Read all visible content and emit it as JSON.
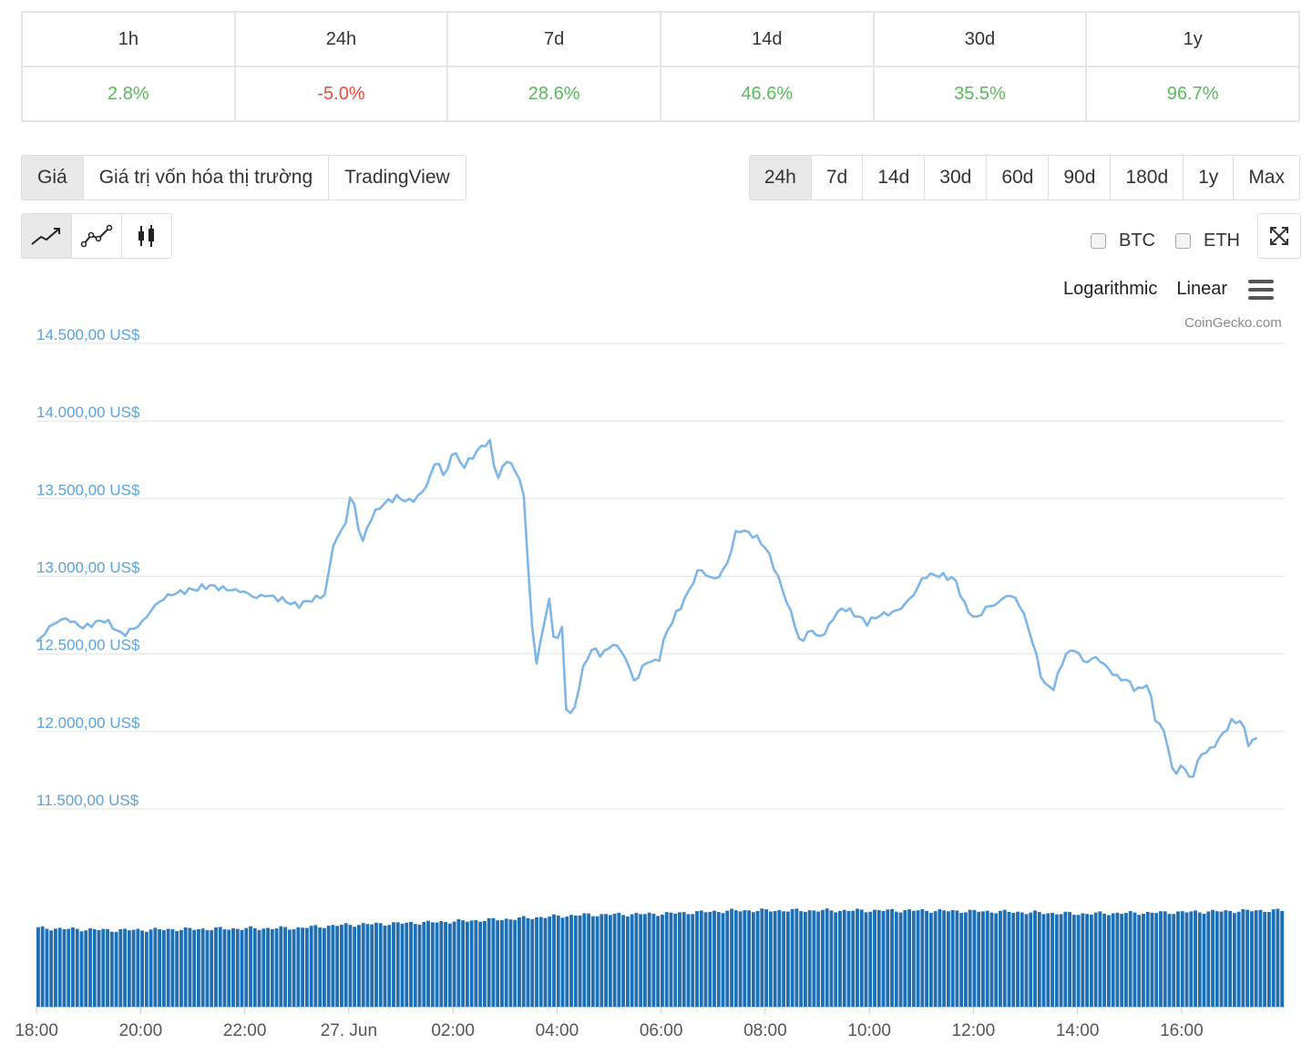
{
  "changes": [
    {
      "period": "1h",
      "value": "2.8%",
      "dir": "pos"
    },
    {
      "period": "24h",
      "value": "-5.0%",
      "dir": "neg"
    },
    {
      "period": "7d",
      "value": "28.6%",
      "dir": "pos"
    },
    {
      "period": "14d",
      "value": "46.6%",
      "dir": "pos"
    },
    {
      "period": "30d",
      "value": "35.5%",
      "dir": "pos"
    },
    {
      "period": "1y",
      "value": "96.7%",
      "dir": "pos"
    }
  ],
  "tabs": [
    "Giá",
    "Giá trị vốn hóa thị trường",
    "TradingView"
  ],
  "active_tab": 0,
  "ranges": [
    "24h",
    "7d",
    "14d",
    "30d",
    "60d",
    "90d",
    "180d",
    "1y",
    "Max"
  ],
  "active_range": 0,
  "chart_types": [
    "line-chart-icon",
    "point-line-chart-icon",
    "candlestick-icon"
  ],
  "compare": [
    "BTC",
    "ETH"
  ],
  "scale_options": {
    "log": "Logarithmic",
    "linear": "Linear"
  },
  "credit": "CoinGecko.com",
  "colors": {
    "line": "#7eb6e6",
    "volume": "#1f6fb5",
    "axis_text": "#5ba3d9",
    "positive": "#5cb85c",
    "negative": "#e74c3c"
  },
  "chart_data": {
    "type": "line",
    "ylim": [
      11500,
      14500
    ],
    "y_ticks": [
      14500,
      14000,
      13500,
      13000,
      12500,
      12000,
      11500
    ],
    "y_tick_labels": [
      "14.500,00 US$",
      "14.000,00 US$",
      "13.500,00 US$",
      "13.000,00 US$",
      "12.500,00 US$",
      "12.000,00 US$",
      "11.500,00 US$"
    ],
    "x_ticks": [
      {
        "label": "18:00",
        "h": 0.3
      },
      {
        "label": "20:00",
        "h": 2.3
      },
      {
        "label": "22:00",
        "h": 4.3
      },
      {
        "label": "27. Jun",
        "h": 6.3
      },
      {
        "label": "02:00",
        "h": 8.3
      },
      {
        "label": "04:00",
        "h": 10.3
      },
      {
        "label": "06:00",
        "h": 12.3
      },
      {
        "label": "08:00",
        "h": 14.3
      },
      {
        "label": "10:00",
        "h": 16.3
      },
      {
        "label": "12:00",
        "h": 18.3
      },
      {
        "label": "14:00",
        "h": 20.3
      },
      {
        "label": "16:00",
        "h": 22.3
      }
    ],
    "x_range_hours": [
      0,
      24
    ],
    "price_anchors": [
      [
        0,
        12570
      ],
      [
        0.3,
        12690
      ],
      [
        0.55,
        12730
      ],
      [
        0.9,
        12670
      ],
      [
        1.3,
        12720
      ],
      [
        1.45,
        12680
      ],
      [
        1.65,
        12620
      ],
      [
        1.85,
        12660
      ],
      [
        2.0,
        12690
      ],
      [
        2.3,
        12820
      ],
      [
        2.55,
        12880
      ],
      [
        2.8,
        12900
      ],
      [
        3.1,
        12920
      ],
      [
        3.3,
        12940
      ],
      [
        3.6,
        12920
      ],
      [
        4.0,
        12900
      ],
      [
        4.2,
        12860
      ],
      [
        4.4,
        12880
      ],
      [
        4.8,
        12840
      ],
      [
        5.0,
        12810
      ],
      [
        5.3,
        12850
      ],
      [
        5.55,
        12880
      ],
      [
        5.7,
        13200
      ],
      [
        5.95,
        13350
      ],
      [
        6.05,
        13560
      ],
      [
        6.15,
        13380
      ],
      [
        6.25,
        13200
      ],
      [
        6.4,
        13360
      ],
      [
        6.6,
        13450
      ],
      [
        6.9,
        13510
      ],
      [
        7.2,
        13480
      ],
      [
        7.45,
        13550
      ],
      [
        7.7,
        13760
      ],
      [
        7.85,
        13620
      ],
      [
        8.0,
        13820
      ],
      [
        8.2,
        13700
      ],
      [
        8.45,
        13800
      ],
      [
        8.7,
        13880
      ],
      [
        8.85,
        13620
      ],
      [
        9.05,
        13760
      ],
      [
        9.35,
        13590
      ],
      [
        9.5,
        12760
      ],
      [
        9.6,
        12420
      ],
      [
        9.75,
        12700
      ],
      [
        9.85,
        12850
      ],
      [
        9.95,
        12570
      ],
      [
        10.1,
        12660
      ],
      [
        10.15,
        12180
      ],
      [
        10.3,
        12080
      ],
      [
        10.4,
        12260
      ],
      [
        10.55,
        12460
      ],
      [
        10.7,
        12540
      ],
      [
        10.85,
        12490
      ],
      [
        11.1,
        12570
      ],
      [
        11.3,
        12490
      ],
      [
        11.5,
        12310
      ],
      [
        11.7,
        12450
      ],
      [
        11.95,
        12450
      ],
      [
        12.1,
        12640
      ],
      [
        12.3,
        12760
      ],
      [
        12.5,
        12880
      ],
      [
        12.75,
        13060
      ],
      [
        12.9,
        12990
      ],
      [
        13.1,
        12990
      ],
      [
        13.3,
        13100
      ],
      [
        13.45,
        13300
      ],
      [
        13.6,
        13290
      ],
      [
        13.8,
        13260
      ],
      [
        14.0,
        13190
      ],
      [
        14.15,
        13080
      ],
      [
        14.35,
        12900
      ],
      [
        14.5,
        12760
      ],
      [
        14.7,
        12550
      ],
      [
        14.85,
        12670
      ],
      [
        15.0,
        12610
      ],
      [
        15.15,
        12630
      ],
      [
        15.3,
        12730
      ],
      [
        15.5,
        12800
      ],
      [
        15.75,
        12750
      ],
      [
        15.95,
        12700
      ],
      [
        16.2,
        12750
      ],
      [
        16.4,
        12760
      ],
      [
        16.6,
        12790
      ],
      [
        16.85,
        12880
      ],
      [
        17.05,
        13000
      ],
      [
        17.25,
        13010
      ],
      [
        17.45,
        13000
      ],
      [
        17.65,
        12980
      ],
      [
        17.85,
        12800
      ],
      [
        18.05,
        12720
      ],
      [
        18.25,
        12800
      ],
      [
        18.45,
        12820
      ],
      [
        18.65,
        12880
      ],
      [
        18.85,
        12850
      ],
      [
        19.05,
        12680
      ],
      [
        19.2,
        12500
      ],
      [
        19.35,
        12300
      ],
      [
        19.55,
        12280
      ],
      [
        19.75,
        12490
      ],
      [
        19.95,
        12530
      ],
      [
        20.15,
        12440
      ],
      [
        20.35,
        12480
      ],
      [
        20.55,
        12420
      ],
      [
        20.75,
        12350
      ],
      [
        20.95,
        12330
      ],
      [
        21.15,
        12260
      ],
      [
        21.35,
        12310
      ],
      [
        21.5,
        12080
      ],
      [
        21.7,
        11980
      ],
      [
        21.85,
        11700
      ],
      [
        22.0,
        11790
      ],
      [
        22.2,
        11680
      ],
      [
        22.35,
        11850
      ],
      [
        22.55,
        11880
      ],
      [
        22.75,
        11960
      ],
      [
        22.95,
        12060
      ],
      [
        23.15,
        12070
      ],
      [
        23.3,
        11910
      ],
      [
        23.45,
        11960
      ]
    ],
    "volume_bars": 288,
    "volume_ylim": [
      0,
      1
    ],
    "volume_anchors": [
      [
        0,
        0.72
      ],
      [
        1.5,
        0.7
      ],
      [
        3.0,
        0.71
      ],
      [
        5.0,
        0.72
      ],
      [
        6.0,
        0.75
      ],
      [
        7.5,
        0.77
      ],
      [
        9.0,
        0.8
      ],
      [
        10.5,
        0.84
      ],
      [
        12.0,
        0.85
      ],
      [
        13.5,
        0.88
      ],
      [
        15.0,
        0.88
      ],
      [
        17.0,
        0.88
      ],
      [
        18.5,
        0.87
      ],
      [
        20.0,
        0.85
      ],
      [
        21.5,
        0.86
      ],
      [
        22.5,
        0.87
      ],
      [
        23.5,
        0.88
      ]
    ]
  }
}
